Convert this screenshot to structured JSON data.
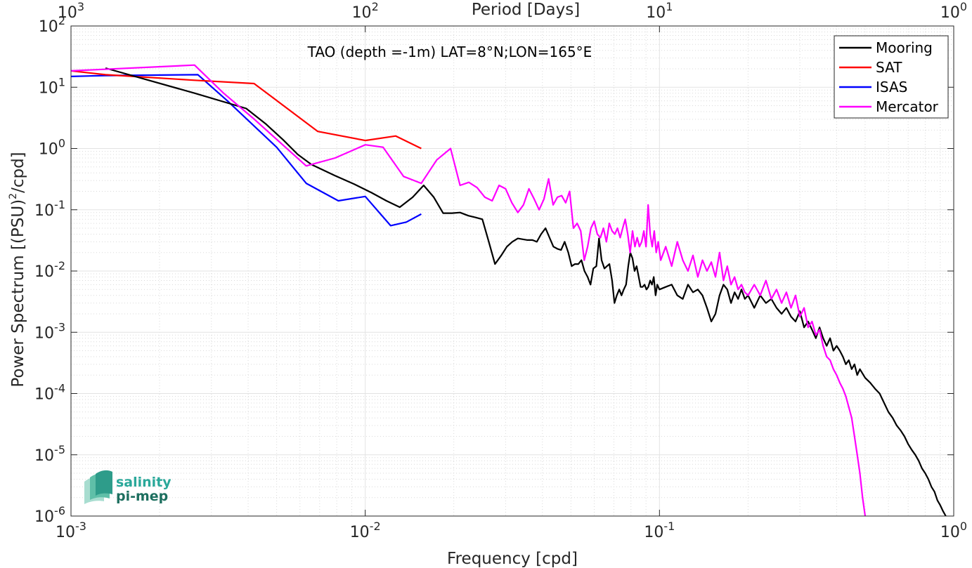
{
  "chart_data": {
    "type": "line",
    "title": "",
    "annotation": "TAO (depth =-1m) LAT=8°N;LON=165°E",
    "xlabel": "Frequency [cpd]",
    "ylabel": "Power Spectrum [(PSU)²/cpd]",
    "ylabel_parts": {
      "main": "Power Spectrum [(PSU)",
      "sup": "2",
      "tail": "/cpd]"
    },
    "top_xlabel": "Period [Days]",
    "xscale": "log",
    "yscale": "log",
    "xlim": [
      0.001,
      1
    ],
    "ylim": [
      1e-06,
      100
    ],
    "grid": true,
    "legend_position": "top-right",
    "x_ticks": [
      {
        "value": 0.001,
        "base": "10",
        "exp": "-3"
      },
      {
        "value": 0.01,
        "base": "10",
        "exp": "-2"
      },
      {
        "value": 0.1,
        "base": "10",
        "exp": "-1"
      },
      {
        "value": 1,
        "base": "10",
        "exp": "0"
      }
    ],
    "top_ticks": [
      {
        "value": 1000,
        "base": "10",
        "exp": "3"
      },
      {
        "value": 100,
        "base": "10",
        "exp": "2"
      },
      {
        "value": 10,
        "base": "10",
        "exp": "1"
      },
      {
        "value": 1,
        "base": "10",
        "exp": "0"
      }
    ],
    "y_ticks": [
      {
        "value": 1e-06,
        "base": "10",
        "exp": "-6"
      },
      {
        "value": 1e-05,
        "base": "10",
        "exp": "-5"
      },
      {
        "value": 0.0001,
        "base": "10",
        "exp": "-4"
      },
      {
        "value": 0.001,
        "base": "10",
        "exp": "-3"
      },
      {
        "value": 0.01,
        "base": "10",
        "exp": "-2"
      },
      {
        "value": 0.1,
        "base": "10",
        "exp": "-1"
      },
      {
        "value": 1,
        "base": "10",
        "exp": "0"
      },
      {
        "value": 10,
        "base": "10",
        "exp": "1"
      },
      {
        "value": 100,
        "base": "10",
        "exp": "2"
      }
    ],
    "series": [
      {
        "name": "Mooring",
        "color": "#000000",
        "points": [
          [
            0.00131,
            20.5
          ],
          [
            0.00263,
            8.0
          ],
          [
            0.00394,
            4.5
          ],
          [
            0.0046,
            2.5
          ],
          [
            0.00525,
            1.4
          ],
          [
            0.0059,
            0.8
          ],
          [
            0.00656,
            0.55
          ],
          [
            0.0079,
            0.36
          ],
          [
            0.0092,
            0.26
          ],
          [
            0.0105,
            0.19
          ],
          [
            0.0118,
            0.14
          ],
          [
            0.0131,
            0.11
          ],
          [
            0.0145,
            0.16
          ],
          [
            0.0158,
            0.25
          ],
          [
            0.0171,
            0.16
          ],
          [
            0.0184,
            0.088
          ],
          [
            0.0197,
            0.088
          ],
          [
            0.021,
            0.09
          ],
          [
            0.0224,
            0.08
          ],
          [
            0.0237,
            0.075
          ],
          [
            0.025,
            0.07
          ],
          [
            0.0263,
            0.03
          ],
          [
            0.0276,
            0.013
          ],
          [
            0.029,
            0.018
          ],
          [
            0.0303,
            0.025
          ],
          [
            0.0316,
            0.03
          ],
          [
            0.033,
            0.034
          ],
          [
            0.0343,
            0.033
          ],
          [
            0.0356,
            0.032
          ],
          [
            0.037,
            0.032
          ],
          [
            0.0383,
            0.03
          ],
          [
            0.0396,
            0.04
          ],
          [
            0.041,
            0.05
          ],
          [
            0.0423,
            0.035
          ],
          [
            0.0436,
            0.025
          ],
          [
            0.045,
            0.023
          ],
          [
            0.0463,
            0.022
          ],
          [
            0.0476,
            0.03
          ],
          [
            0.049,
            0.02
          ],
          [
            0.0503,
            0.012
          ],
          [
            0.0516,
            0.013
          ],
          [
            0.053,
            0.013
          ],
          [
            0.0543,
            0.015
          ],
          [
            0.0556,
            0.01
          ],
          [
            0.057,
            0.008
          ],
          [
            0.0583,
            0.006
          ],
          [
            0.0596,
            0.011
          ],
          [
            0.061,
            0.012
          ],
          [
            0.0623,
            0.034
          ],
          [
            0.0636,
            0.015
          ],
          [
            0.065,
            0.011
          ],
          [
            0.0663,
            0.012
          ],
          [
            0.0676,
            0.013
          ],
          [
            0.069,
            0.007
          ],
          [
            0.0703,
            0.003
          ],
          [
            0.0716,
            0.004
          ],
          [
            0.073,
            0.005
          ],
          [
            0.0743,
            0.004
          ],
          [
            0.0756,
            0.005
          ],
          [
            0.077,
            0.006
          ],
          [
            0.0783,
            0.012
          ],
          [
            0.0796,
            0.02
          ],
          [
            0.081,
            0.016
          ],
          [
            0.0823,
            0.01
          ],
          [
            0.0836,
            0.012
          ],
          [
            0.085,
            0.008
          ],
          [
            0.0863,
            0.0055
          ],
          [
            0.0876,
            0.0055
          ],
          [
            0.089,
            0.006
          ],
          [
            0.0903,
            0.005
          ],
          [
            0.0916,
            0.0055
          ],
          [
            0.093,
            0.007
          ],
          [
            0.0943,
            0.006
          ],
          [
            0.0956,
            0.008
          ],
          [
            0.097,
            0.004
          ],
          [
            0.0983,
            0.006
          ],
          [
            0.1,
            0.005
          ],
          [
            0.105,
            0.0055
          ],
          [
            0.11,
            0.006
          ],
          [
            0.115,
            0.004
          ],
          [
            0.12,
            0.0035
          ],
          [
            0.125,
            0.006
          ],
          [
            0.13,
            0.0045
          ],
          [
            0.135,
            0.005
          ],
          [
            0.14,
            0.004
          ],
          [
            0.145,
            0.0025
          ],
          [
            0.15,
            0.0015
          ],
          [
            0.155,
            0.002
          ],
          [
            0.16,
            0.004
          ],
          [
            0.165,
            0.006
          ],
          [
            0.17,
            0.005
          ],
          [
            0.175,
            0.003
          ],
          [
            0.18,
            0.0045
          ],
          [
            0.185,
            0.0035
          ],
          [
            0.19,
            0.005
          ],
          [
            0.195,
            0.0035
          ],
          [
            0.2,
            0.004
          ],
          [
            0.21,
            0.0025
          ],
          [
            0.22,
            0.004
          ],
          [
            0.23,
            0.003
          ],
          [
            0.24,
            0.0035
          ],
          [
            0.25,
            0.0025
          ],
          [
            0.26,
            0.002
          ],
          [
            0.27,
            0.0025
          ],
          [
            0.28,
            0.0018
          ],
          [
            0.29,
            0.0015
          ],
          [
            0.3,
            0.0022
          ],
          [
            0.31,
            0.0012
          ],
          [
            0.32,
            0.0015
          ],
          [
            0.33,
            0.0011
          ],
          [
            0.34,
            0.0008
          ],
          [
            0.35,
            0.0012
          ],
          [
            0.36,
            0.0008
          ],
          [
            0.37,
            0.0006
          ],
          [
            0.38,
            0.0008
          ],
          [
            0.39,
            0.0005
          ],
          [
            0.4,
            0.0006
          ],
          [
            0.41,
            0.0005
          ],
          [
            0.42,
            0.0004
          ],
          [
            0.43,
            0.0003
          ],
          [
            0.44,
            0.00035
          ],
          [
            0.45,
            0.00025
          ],
          [
            0.46,
            0.0003
          ],
          [
            0.47,
            0.0002
          ],
          [
            0.48,
            0.00025
          ],
          [
            0.5,
            0.00018
          ],
          [
            0.52,
            0.00015
          ],
          [
            0.54,
            0.00012
          ],
          [
            0.56,
            0.0001
          ],
          [
            0.58,
            7e-05
          ],
          [
            0.6,
            5e-05
          ],
          [
            0.62,
            4e-05
          ],
          [
            0.64,
            3e-05
          ],
          [
            0.66,
            2.5e-05
          ],
          [
            0.68,
            2e-05
          ],
          [
            0.7,
            1.5e-05
          ],
          [
            0.72,
            1.2e-05
          ],
          [
            0.74,
            1e-05
          ],
          [
            0.76,
            8e-06
          ],
          [
            0.78,
            6e-06
          ],
          [
            0.8,
            5e-06
          ],
          [
            0.82,
            4e-06
          ],
          [
            0.84,
            3e-06
          ],
          [
            0.86,
            2.5e-06
          ],
          [
            0.88,
            1.8e-06
          ],
          [
            0.9,
            1.5e-06
          ],
          [
            0.92,
            1.2e-06
          ],
          [
            0.94,
            1e-06
          ]
        ]
      },
      {
        "name": "SAT",
        "color": "#ff0000",
        "points": [
          [
            0.001,
            18.5
          ],
          [
            0.00131,
            16.0
          ],
          [
            0.00263,
            13.0
          ],
          [
            0.00419,
            11.5
          ],
          [
            0.0069,
            1.9
          ],
          [
            0.01,
            1.35
          ],
          [
            0.0127,
            1.6
          ],
          [
            0.0155,
            1.0
          ]
        ]
      },
      {
        "name": "ISAS",
        "color": "#0000ff",
        "points": [
          [
            0.001,
            15.0
          ],
          [
            0.00131,
            15.5
          ],
          [
            0.0027,
            16.0
          ],
          [
            0.0034,
            6.0
          ],
          [
            0.005,
            1.05
          ],
          [
            0.0063,
            0.27
          ],
          [
            0.0081,
            0.14
          ],
          [
            0.01,
            0.165
          ],
          [
            0.0122,
            0.055
          ],
          [
            0.0138,
            0.063
          ],
          [
            0.0155,
            0.085
          ]
        ]
      },
      {
        "name": "Mercator",
        "color": "#ff00ff",
        "points": [
          [
            0.001,
            18.5
          ],
          [
            0.00263,
            23.0
          ],
          [
            0.0033,
            8.0
          ],
          [
            0.0042,
            3.0
          ],
          [
            0.0063,
            0.52
          ],
          [
            0.0079,
            0.7
          ],
          [
            0.01,
            1.15
          ],
          [
            0.0115,
            1.05
          ],
          [
            0.0135,
            0.35
          ],
          [
            0.0155,
            0.27
          ],
          [
            0.0175,
            0.65
          ],
          [
            0.0195,
            1.0
          ],
          [
            0.021,
            0.25
          ],
          [
            0.0225,
            0.28
          ],
          [
            0.024,
            0.23
          ],
          [
            0.0255,
            0.16
          ],
          [
            0.027,
            0.14
          ],
          [
            0.0285,
            0.25
          ],
          [
            0.03,
            0.22
          ],
          [
            0.0315,
            0.13
          ],
          [
            0.033,
            0.09
          ],
          [
            0.0345,
            0.12
          ],
          [
            0.036,
            0.22
          ],
          [
            0.0375,
            0.15
          ],
          [
            0.039,
            0.1
          ],
          [
            0.0405,
            0.15
          ],
          [
            0.042,
            0.32
          ],
          [
            0.0435,
            0.12
          ],
          [
            0.045,
            0.16
          ],
          [
            0.0465,
            0.17
          ],
          [
            0.048,
            0.13
          ],
          [
            0.0495,
            0.2
          ],
          [
            0.051,
            0.05
          ],
          [
            0.0525,
            0.06
          ],
          [
            0.054,
            0.045
          ],
          [
            0.0555,
            0.015
          ],
          [
            0.057,
            0.025
          ],
          [
            0.0585,
            0.05
          ],
          [
            0.06,
            0.065
          ],
          [
            0.0615,
            0.04
          ],
          [
            0.063,
            0.035
          ],
          [
            0.0645,
            0.05
          ],
          [
            0.066,
            0.03
          ],
          [
            0.0675,
            0.06
          ],
          [
            0.069,
            0.045
          ],
          [
            0.0705,
            0.04
          ],
          [
            0.072,
            0.05
          ],
          [
            0.0735,
            0.035
          ],
          [
            0.075,
            0.05
          ],
          [
            0.0765,
            0.07
          ],
          [
            0.078,
            0.04
          ],
          [
            0.0795,
            0.02
          ],
          [
            0.081,
            0.045
          ],
          [
            0.0825,
            0.025
          ],
          [
            0.084,
            0.035
          ],
          [
            0.0855,
            0.025
          ],
          [
            0.087,
            0.03
          ],
          [
            0.0885,
            0.045
          ],
          [
            0.09,
            0.025
          ],
          [
            0.0915,
            0.12
          ],
          [
            0.093,
            0.04
          ],
          [
            0.0945,
            0.025
          ],
          [
            0.096,
            0.045
          ],
          [
            0.0975,
            0.02
          ],
          [
            0.099,
            0.03
          ],
          [
            0.101,
            0.015
          ],
          [
            0.105,
            0.025
          ],
          [
            0.11,
            0.012
          ],
          [
            0.115,
            0.03
          ],
          [
            0.12,
            0.015
          ],
          [
            0.125,
            0.01
          ],
          [
            0.13,
            0.018
          ],
          [
            0.135,
            0.008
          ],
          [
            0.14,
            0.015
          ],
          [
            0.145,
            0.01
          ],
          [
            0.15,
            0.014
          ],
          [
            0.155,
            0.008
          ],
          [
            0.16,
            0.02
          ],
          [
            0.165,
            0.007
          ],
          [
            0.17,
            0.012
          ],
          [
            0.175,
            0.006
          ],
          [
            0.18,
            0.008
          ],
          [
            0.185,
            0.005
          ],
          [
            0.19,
            0.006
          ],
          [
            0.195,
            0.0045
          ],
          [
            0.2,
            0.004
          ],
          [
            0.21,
            0.006
          ],
          [
            0.22,
            0.004
          ],
          [
            0.23,
            0.007
          ],
          [
            0.24,
            0.0035
          ],
          [
            0.25,
            0.005
          ],
          [
            0.26,
            0.003
          ],
          [
            0.27,
            0.0045
          ],
          [
            0.28,
            0.0025
          ],
          [
            0.29,
            0.004
          ],
          [
            0.3,
            0.0018
          ],
          [
            0.31,
            0.0025
          ],
          [
            0.32,
            0.0012
          ],
          [
            0.33,
            0.0015
          ],
          [
            0.34,
            0.0009
          ],
          [
            0.35,
            0.0011
          ],
          [
            0.36,
            0.0006
          ],
          [
            0.37,
            0.0004
          ],
          [
            0.38,
            0.00035
          ],
          [
            0.39,
            0.00025
          ],
          [
            0.4,
            0.0002
          ],
          [
            0.41,
            0.00015
          ],
          [
            0.42,
            0.00012
          ],
          [
            0.43,
            9e-05
          ],
          [
            0.44,
            6e-05
          ],
          [
            0.45,
            4e-05
          ],
          [
            0.46,
            2e-05
          ],
          [
            0.47,
            1e-05
          ],
          [
            0.48,
            5e-06
          ],
          [
            0.49,
            2e-06
          ],
          [
            0.5,
            1e-06
          ]
        ]
      }
    ]
  },
  "logo": {
    "line1": "salinity",
    "line2": "pi-mep"
  }
}
